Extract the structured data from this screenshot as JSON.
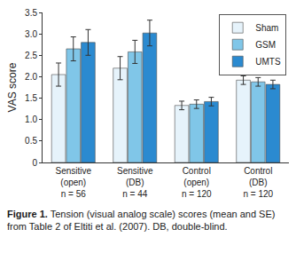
{
  "chart_data": {
    "type": "bar",
    "y_label": "VAS score",
    "categories": [
      "Sensitive\n(open)\nn = 56",
      "Sensitive\n(DB)\nn = 44",
      "Control\n(open)\nn = 120",
      "Control\n(DB)\nn = 120"
    ],
    "series": [
      {
        "name": "Sham",
        "color": "#e6f3fb",
        "values": [
          2.05,
          2.2,
          1.33,
          1.92
        ],
        "errors": [
          0.27,
          0.27,
          0.1,
          0.1
        ]
      },
      {
        "name": "GSM",
        "color": "#80c6e8",
        "values": [
          2.65,
          2.58,
          1.36,
          1.88
        ],
        "errors": [
          0.28,
          0.27,
          0.1,
          0.1
        ]
      },
      {
        "name": "UMTS",
        "color": "#2b8ad0",
        "values": [
          2.8,
          3.02,
          1.42,
          1.82
        ],
        "errors": [
          0.3,
          0.3,
          0.1,
          0.1
        ]
      }
    ],
    "ylim": [
      0,
      3.5
    ],
    "yticks": [
      0,
      0.5,
      {
        "value": 1,
        "label": "1.0"
      },
      1.5,
      {
        "value": 2,
        "label": "2.0"
      },
      2.5,
      {
        "value": 3,
        "label": "3.0"
      },
      3.5
    ],
    "grid": false,
    "legend": "top right"
  },
  "caption": {
    "label": "Figure 1.",
    "text": "Tension (visual analog scale) scores (mean and SE) from Table 2 of Eltiti et al. (2007). DB, double-blind."
  }
}
